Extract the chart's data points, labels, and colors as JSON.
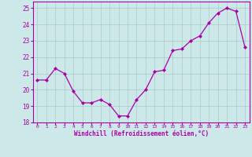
{
  "x": [
    0,
    1,
    2,
    3,
    4,
    5,
    6,
    7,
    8,
    9,
    10,
    11,
    12,
    13,
    14,
    15,
    16,
    17,
    18,
    19,
    20,
    21,
    22,
    23
  ],
  "y": [
    20.6,
    20.6,
    21.3,
    21.0,
    19.9,
    19.2,
    19.2,
    19.4,
    19.1,
    18.4,
    18.4,
    19.4,
    20.0,
    21.1,
    21.2,
    22.4,
    22.5,
    23.0,
    23.3,
    24.1,
    24.7,
    25.0,
    24.8,
    22.6
  ],
  "line_color": "#aa00aa",
  "marker": "D",
  "marker_size": 2,
  "bg_color": "#cce8e8",
  "grid_color": "#aacccc",
  "xlabel": "Windchill (Refroidissement éolien,°C)",
  "xlabel_color": "#aa00aa",
  "tick_color": "#aa00aa",
  "ylim": [
    18,
    25.4
  ],
  "yticks": [
    18,
    19,
    20,
    21,
    22,
    23,
    24,
    25
  ],
  "xlim": [
    -0.5,
    23.5
  ],
  "xticks": [
    0,
    1,
    2,
    3,
    4,
    5,
    6,
    7,
    8,
    9,
    10,
    11,
    12,
    13,
    14,
    15,
    16,
    17,
    18,
    19,
    20,
    21,
    22,
    23
  ]
}
